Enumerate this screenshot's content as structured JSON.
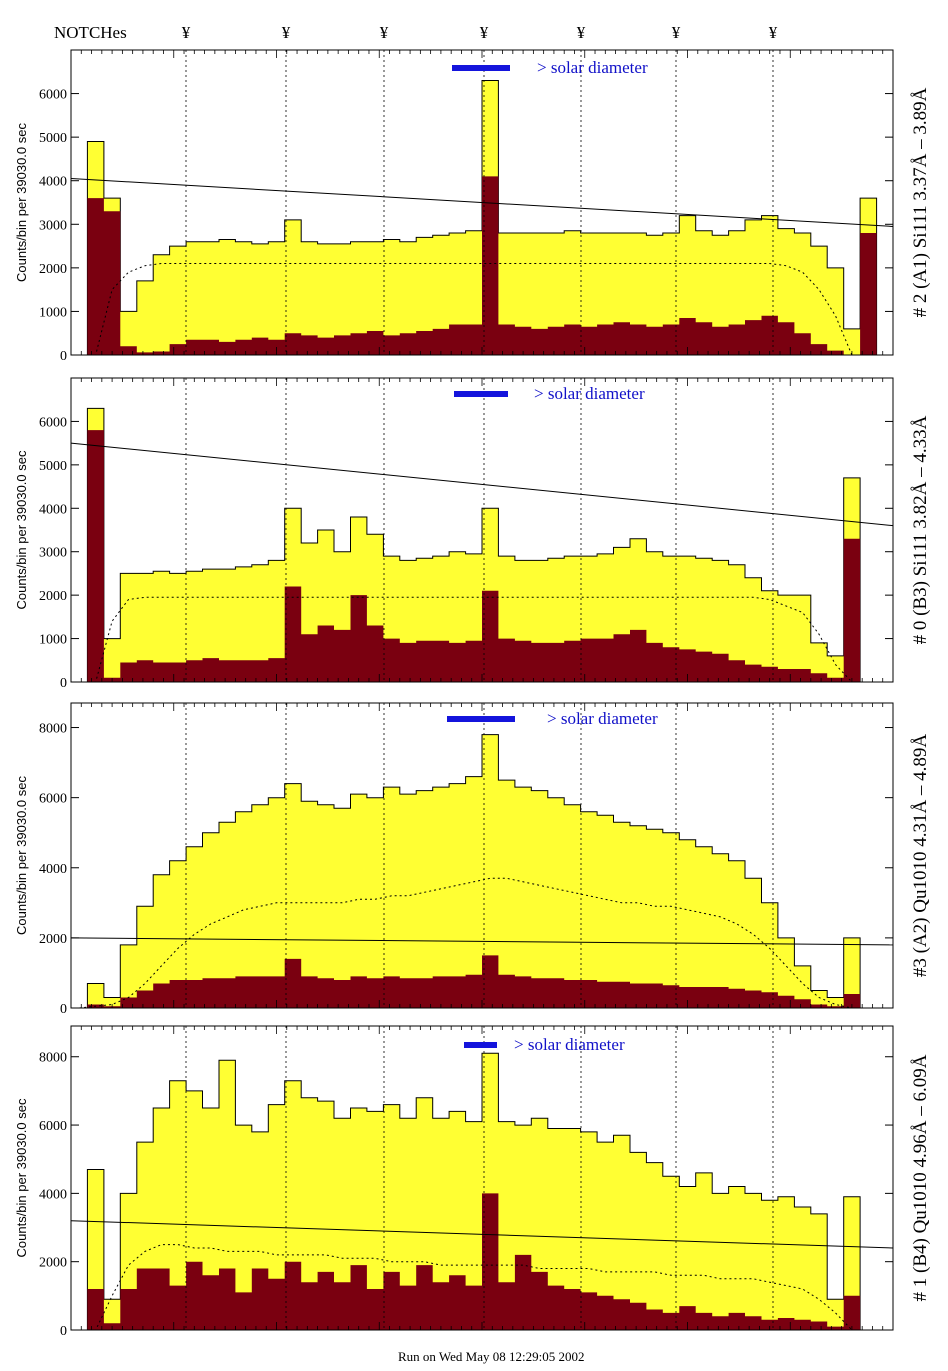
{
  "header": {
    "notches_label": "NOTCHes",
    "notch_symbol": "¥",
    "notch_count": 7
  },
  "footer": {
    "run_text": "Run on Wed May 08 12:29:05 2002"
  },
  "colors": {
    "fill_total": "#ffff33",
    "fill_dark": "#7a0010",
    "solar_bar": "#1414dc",
    "line": "#000000"
  },
  "chart_data": [
    {
      "type": "area",
      "side_title": "# 2 (A1) Si111  3.37Å – 3.89Å",
      "ylabel": "Counts/bin per  39030.0 sec",
      "ylim": [
        0,
        7000
      ],
      "yticks": [
        0,
        1000,
        2000,
        3000,
        4000,
        5000,
        6000
      ],
      "solar_label": "> solar diameter",
      "continuum_line": [
        4050,
        2950
      ],
      "yellow": [
        0,
        4900,
        3600,
        1000,
        1700,
        2300,
        2500,
        2600,
        2600,
        2650,
        2600,
        2550,
        2600,
        3100,
        2600,
        2550,
        2550,
        2600,
        2600,
        2650,
        2600,
        2700,
        2750,
        2800,
        2850,
        6300,
        2800,
        2800,
        2800,
        2800,
        2850,
        2800,
        2800,
        2800,
        2800,
        2750,
        2800,
        3200,
        2850,
        2750,
        2850,
        3100,
        3200,
        2900,
        2800,
        2500,
        2000,
        600,
        3600,
        0
      ],
      "dark": [
        0,
        3600,
        3300,
        200,
        60,
        80,
        250,
        350,
        350,
        300,
        350,
        400,
        350,
        500,
        450,
        400,
        450,
        500,
        550,
        450,
        500,
        550,
        600,
        700,
        700,
        4100,
        700,
        650,
        600,
        650,
        700,
        650,
        700,
        750,
        700,
        650,
        700,
        850,
        750,
        650,
        700,
        800,
        900,
        750,
        500,
        250,
        100,
        0,
        2800,
        0
      ],
      "dotted": [
        0,
        0,
        1500,
        1900,
        2050,
        2100,
        2100,
        2100,
        2100,
        2100,
        2100,
        2100,
        2100,
        2100,
        2100,
        2100,
        2100,
        2100,
        2100,
        2100,
        2100,
        2100,
        2100,
        2100,
        2100,
        2100,
        2100,
        2100,
        2100,
        2100,
        2100,
        2100,
        2100,
        2100,
        2100,
        2100,
        2100,
        2100,
        2100,
        2100,
        2100,
        2100,
        2100,
        2050,
        1900,
        1500,
        900,
        0,
        0,
        0
      ]
    },
    {
      "type": "area",
      "side_title": "# 0 (B3) Si111  3.82Å – 4.33Å",
      "ylabel": "Counts/bin per  39030.0 sec",
      "ylim": [
        0,
        7000
      ],
      "yticks": [
        0,
        1000,
        2000,
        3000,
        4000,
        5000,
        6000
      ],
      "solar_label": "> solar diameter",
      "continuum_line": [
        5500,
        3600
      ],
      "yellow": [
        0,
        6300,
        1000,
        2500,
        2500,
        2550,
        2500,
        2550,
        2600,
        2600,
        2650,
        2700,
        2800,
        4000,
        3200,
        3500,
        3000,
        3800,
        3400,
        2900,
        2800,
        2850,
        2900,
        3000,
        2950,
        4000,
        2900,
        2800,
        2800,
        2850,
        2900,
        2900,
        2950,
        3100,
        3300,
        3000,
        2900,
        2900,
        2850,
        2800,
        2700,
        2400,
        2100,
        2000,
        2000,
        900,
        600,
        4700,
        0,
        0
      ],
      "dark": [
        0,
        5800,
        100,
        450,
        500,
        450,
        450,
        500,
        550,
        500,
        500,
        500,
        550,
        2200,
        1100,
        1300,
        1200,
        2000,
        1300,
        1000,
        900,
        950,
        950,
        900,
        950,
        2100,
        1000,
        950,
        900,
        900,
        950,
        1000,
        1000,
        1100,
        1200,
        900,
        800,
        750,
        700,
        650,
        500,
        400,
        350,
        300,
        300,
        200,
        100,
        3300,
        0,
        0
      ],
      "dotted": [
        0,
        0,
        1400,
        1900,
        1950,
        1950,
        1950,
        1950,
        1950,
        1950,
        1950,
        1950,
        1950,
        1950,
        1950,
        1950,
        1950,
        1950,
        1950,
        1950,
        1950,
        1950,
        1950,
        1950,
        1950,
        1950,
        1950,
        1950,
        1950,
        1950,
        1950,
        1950,
        1950,
        1950,
        1950,
        1950,
        1950,
        1950,
        1950,
        1950,
        1950,
        1950,
        1900,
        1750,
        1600,
        1100,
        400,
        0,
        0,
        0
      ]
    },
    {
      "type": "area",
      "side_title": "#3 (A2) Qu1010  4.31Å – 4.89Å",
      "ylabel": "Counts/bin per  39030.0 sec",
      "ylim": [
        0,
        8700
      ],
      "yticks": [
        0,
        2000,
        4000,
        6000,
        8000
      ],
      "solar_label": "> solar diameter",
      "continuum_line": [
        2000,
        1800
      ],
      "yellow": [
        0,
        700,
        300,
        1800,
        2900,
        3800,
        4200,
        4600,
        5000,
        5300,
        5600,
        5800,
        6000,
        6400,
        5900,
        5800,
        5700,
        6100,
        6000,
        6300,
        6100,
        6200,
        6300,
        6400,
        6600,
        7800,
        6500,
        6300,
        6200,
        6000,
        5800,
        5600,
        5500,
        5300,
        5200,
        5100,
        5000,
        4800,
        4600,
        4400,
        4200,
        3700,
        3000,
        2000,
        1200,
        500,
        300,
        2000,
        0,
        0
      ],
      "dark": [
        0,
        100,
        50,
        300,
        500,
        700,
        800,
        800,
        850,
        850,
        900,
        900,
        900,
        1400,
        900,
        850,
        800,
        900,
        850,
        900,
        850,
        850,
        900,
        900,
        950,
        1500,
        950,
        900,
        850,
        850,
        800,
        800,
        750,
        750,
        700,
        700,
        650,
        600,
        600,
        600,
        550,
        500,
        450,
        350,
        250,
        100,
        50,
        400,
        0,
        0
      ],
      "dotted": [
        0,
        50,
        100,
        300,
        700,
        1200,
        1700,
        2100,
        2400,
        2600,
        2800,
        2900,
        3000,
        3000,
        3000,
        3000,
        3000,
        3100,
        3100,
        3200,
        3200,
        3300,
        3400,
        3500,
        3600,
        3700,
        3700,
        3600,
        3500,
        3400,
        3300,
        3200,
        3100,
        3000,
        3000,
        2900,
        2900,
        2800,
        2700,
        2600,
        2400,
        2100,
        1700,
        1200,
        700,
        300,
        100,
        0,
        0,
        0
      ]
    },
    {
      "type": "area",
      "side_title": "# 1 (B4) Qu1010 4.96Å – 6.09Å",
      "ylabel": "Counts/bin per  39030.0 sec",
      "ylim": [
        0,
        8900
      ],
      "yticks": [
        0,
        2000,
        4000,
        6000,
        8000
      ],
      "solar_label": "> solar diameter",
      "continuum_line": [
        3200,
        2400
      ],
      "yellow": [
        0,
        4700,
        900,
        4000,
        5500,
        6500,
        7300,
        7000,
        6500,
        7900,
        6000,
        5800,
        6600,
        7300,
        6800,
        6700,
        6200,
        6500,
        6400,
        6600,
        6200,
        6800,
        6200,
        6400,
        6100,
        8100,
        6100,
        6000,
        6200,
        5900,
        5900,
        5800,
        5500,
        5700,
        5200,
        4900,
        4500,
        4200,
        4600,
        4000,
        4200,
        4000,
        3800,
        3900,
        3600,
        3400,
        900,
        3900,
        0,
        0
      ],
      "dark": [
        0,
        1200,
        200,
        1200,
        1800,
        1800,
        1300,
        2000,
        1600,
        1800,
        1100,
        1800,
        1500,
        2000,
        1400,
        1700,
        1400,
        1900,
        1200,
        1700,
        1300,
        1900,
        1400,
        1600,
        1300,
        4000,
        1400,
        2200,
        1700,
        1300,
        1200,
        1100,
        1000,
        900,
        800,
        600,
        500,
        700,
        500,
        400,
        500,
        400,
        300,
        350,
        300,
        250,
        100,
        1000,
        0,
        0
      ],
      "dotted": [
        0,
        0,
        1000,
        1900,
        2300,
        2500,
        2500,
        2400,
        2400,
        2300,
        2300,
        2300,
        2200,
        2200,
        2200,
        2200,
        2100,
        2100,
        2100,
        2000,
        2000,
        2000,
        1900,
        1900,
        1900,
        1900,
        1900,
        1900,
        1800,
        1800,
        1800,
        1800,
        1700,
        1700,
        1700,
        1700,
        1600,
        1600,
        1600,
        1500,
        1500,
        1500,
        1400,
        1300,
        1200,
        900,
        500,
        0,
        0,
        0
      ]
    }
  ]
}
